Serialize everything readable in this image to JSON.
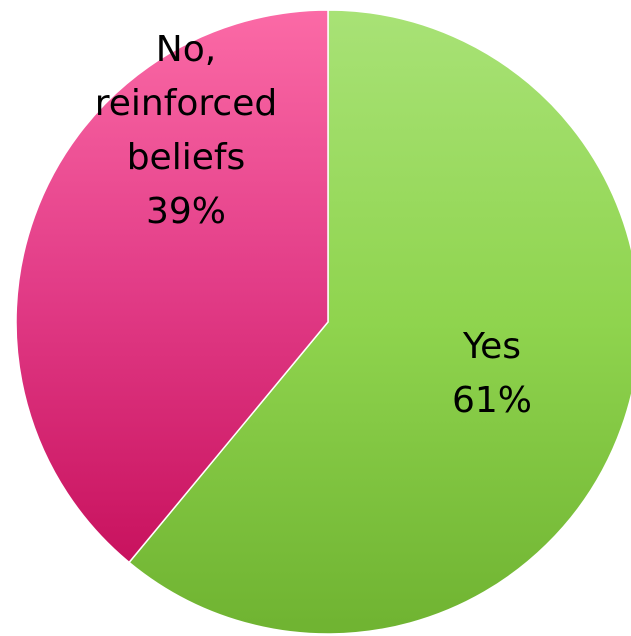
{
  "chart_data": {
    "type": "pie",
    "title": "",
    "slices": [
      {
        "label_lines": [
          "Yes"
        ],
        "value": 61,
        "value_label": "61%",
        "color": "#8fd44e",
        "color_light": "#a8e276",
        "color_dark": "#6fb331"
      },
      {
        "label_lines": [
          "No,",
          "reinforced",
          "beliefs"
        ],
        "value": 39,
        "value_label": "39%",
        "color": "#e23c87",
        "color_light": "#fb6aa6",
        "color_dark": "#c8125e"
      }
    ],
    "start_angle_deg": 0,
    "direction": "clockwise",
    "legend": "none",
    "data_labels": "inside"
  }
}
